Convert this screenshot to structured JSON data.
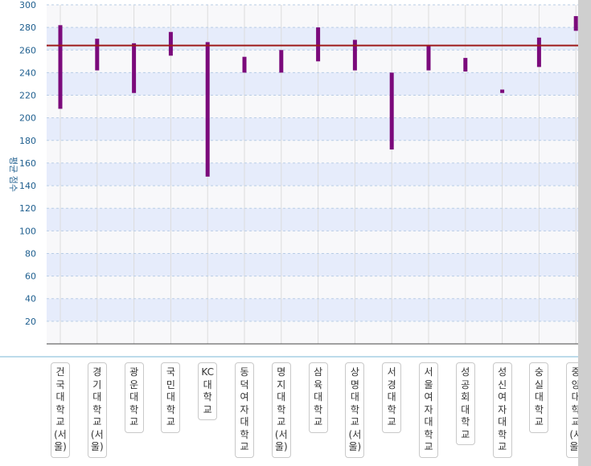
{
  "chart_data": {
    "type": "floating-bar",
    "ylabel": "평균 점수",
    "ylim": [
      0,
      300
    ],
    "yticks": [
      20,
      40,
      60,
      80,
      100,
      120,
      140,
      160,
      180,
      200,
      220,
      240,
      260,
      280,
      300
    ],
    "grid": true,
    "reference_line": 264,
    "categories": [
      "건국대학교(서울)",
      "경기대학교(서울)",
      "광운대학교",
      "국민대학교",
      "KC대학교",
      "동덕여자대학교",
      "명지대학교(서울)",
      "삼육대학교",
      "상명대학교(서울)",
      "서경대학교",
      "서울여자대학교",
      "성공회대학교",
      "성신여자대학교",
      "숭실대학교",
      "중앙대학교(서울)"
    ],
    "ranges": [
      [
        208,
        282
      ],
      [
        242,
        270
      ],
      [
        222,
        266
      ],
      [
        255,
        276
      ],
      [
        148,
        267
      ],
      [
        240,
        254
      ],
      [
        240,
        260
      ],
      [
        250,
        280
      ],
      [
        242,
        269
      ],
      [
        172,
        240
      ],
      [
        242,
        264
      ],
      [
        241,
        253
      ],
      [
        222,
        225
      ],
      [
        245,
        271
      ],
      [
        277,
        290
      ]
    ]
  },
  "colors": {
    "bar": "#7b0a7b",
    "reference_line": "#9e1a1a",
    "band": "#e6ecfb",
    "background": "#f8f8fa",
    "axis_text": "#1f5f8f"
  }
}
